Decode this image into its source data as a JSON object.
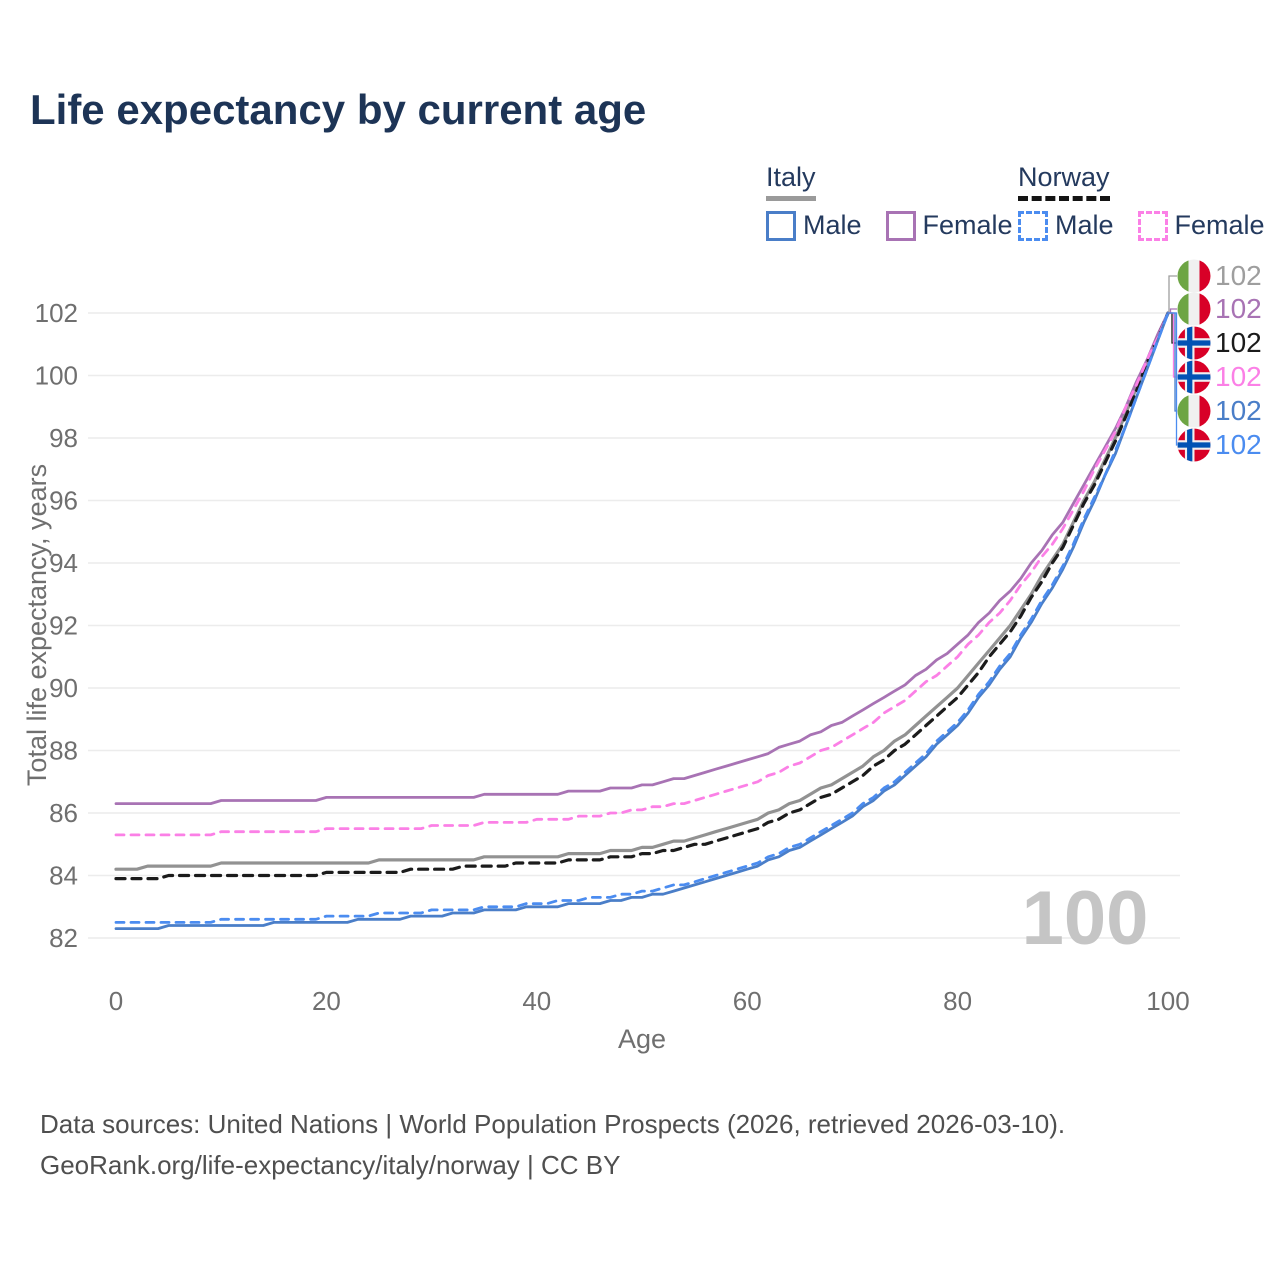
{
  "title": "Life expectancy by current age",
  "legend": {
    "groups": [
      {
        "country": "Italy",
        "key_style": "solid",
        "key_color": "#9a9a9a",
        "items": [
          {
            "label": "Male",
            "color": "#4a7ec8",
            "dashed": false
          },
          {
            "label": "Female",
            "color": "#a873b4",
            "dashed": false
          }
        ]
      },
      {
        "country": "Norway",
        "key_style": "dashed",
        "key_color": "#141414",
        "items": [
          {
            "label": "Male",
            "color": "#4b8cf0",
            "dashed": true
          },
          {
            "label": "Female",
            "color": "#fb80e6",
            "dashed": true
          }
        ]
      }
    ]
  },
  "chart_data": {
    "type": "line",
    "title": "Life expectancy by current age",
    "xlabel": "Age",
    "ylabel": "Total life expectancy, years",
    "xlim": [
      0,
      100
    ],
    "ylim": [
      82,
      102
    ],
    "xticks": [
      0,
      20,
      40,
      60,
      80,
      100
    ],
    "yticks": [
      82,
      84,
      86,
      88,
      90,
      92,
      94,
      96,
      98,
      100,
      102
    ],
    "grid": "horizontal-only",
    "watermark_current_age": "100",
    "ages": [
      0,
      5,
      10,
      15,
      20,
      25,
      30,
      35,
      40,
      45,
      50,
      55,
      60,
      65,
      70,
      75,
      80,
      85,
      90,
      95,
      100
    ],
    "series": [
      {
        "id": "italy-total",
        "country": "Italy",
        "sex": "Both",
        "color": "#929292",
        "dash": null,
        "width": 3.2,
        "label_color": "#9e9e9e",
        "flag": "italy",
        "end_label": "102",
        "values": [
          84.2,
          84.3,
          84.35,
          84.4,
          84.4,
          84.45,
          84.5,
          84.55,
          84.6,
          84.7,
          84.85,
          85.2,
          85.7,
          86.4,
          87.3,
          88.5,
          90.0,
          92.0,
          94.6,
          98.0,
          102.0
        ]
      },
      {
        "id": "italy-female",
        "country": "Italy",
        "sex": "Female",
        "color": "#a873b4",
        "dash": null,
        "width": 2.8,
        "label_color": "#a873b4",
        "flag": "italy",
        "end_label": "102",
        "values": [
          86.25,
          86.3,
          86.35,
          86.4,
          86.45,
          86.45,
          86.5,
          86.55,
          86.6,
          86.7,
          86.85,
          87.2,
          87.7,
          88.3,
          89.1,
          90.1,
          91.4,
          93.1,
          95.3,
          98.3,
          102.0
        ]
      },
      {
        "id": "norway-total",
        "country": "Norway",
        "sex": "Both",
        "color": "#1b1b1b",
        "dash": "9 7",
        "width": 3.2,
        "label_color": "#1b1b1b",
        "flag": "norway",
        "end_label": "102",
        "values": [
          83.9,
          83.95,
          84.0,
          84.0,
          84.05,
          84.1,
          84.2,
          84.3,
          84.4,
          84.5,
          84.65,
          84.95,
          85.4,
          86.1,
          87.0,
          88.2,
          89.7,
          91.8,
          94.5,
          97.9,
          102.0
        ]
      },
      {
        "id": "norway-female",
        "country": "Norway",
        "sex": "Female",
        "color": "#fb80e6",
        "dash": "8 7",
        "width": 2.8,
        "label_color": "#fb80e6",
        "flag": "norway",
        "end_label": "102",
        "values": [
          85.25,
          85.3,
          85.35,
          85.35,
          85.45,
          85.5,
          85.55,
          85.65,
          85.75,
          85.9,
          86.1,
          86.4,
          86.9,
          87.6,
          88.5,
          89.6,
          91.0,
          92.8,
          95.1,
          98.2,
          102.0
        ]
      },
      {
        "id": "italy-male",
        "country": "Italy",
        "sex": "Male",
        "color": "#4a7ec8",
        "dash": null,
        "width": 2.8,
        "label_color": "#4a7ec8",
        "flag": "italy",
        "end_label": "102",
        "values": [
          82.3,
          82.35,
          82.4,
          82.45,
          82.5,
          82.6,
          82.7,
          82.85,
          83.0,
          83.1,
          83.3,
          83.65,
          84.2,
          84.9,
          85.9,
          87.2,
          88.8,
          91.0,
          93.8,
          97.5,
          102.0
        ]
      },
      {
        "id": "norway-male",
        "country": "Norway",
        "sex": "Male",
        "color": "#4b8cf0",
        "dash": "8 7",
        "width": 2.8,
        "label_color": "#4b8cf0",
        "flag": "norway",
        "end_label": "102",
        "values": [
          82.45,
          82.5,
          82.55,
          82.6,
          82.65,
          82.75,
          82.85,
          82.95,
          83.1,
          83.25,
          83.45,
          83.8,
          84.3,
          85.0,
          86.0,
          87.3,
          88.9,
          91.1,
          93.9,
          97.55,
          102.0
        ]
      }
    ],
    "flag_colors": {
      "italy": {
        "green": "#6da544",
        "white": "#f0f0f0",
        "red": "#d80027"
      },
      "norway": {
        "red": "#d80027",
        "white": "#f0f0f0",
        "blue": "#0052b4"
      }
    }
  },
  "footer": {
    "line1": "Data sources: United Nations | World Population Prospects (2026, retrieved 2026-03-10).",
    "line2": "GeoRank.org/life-expectancy/italy/norway | CC BY"
  }
}
